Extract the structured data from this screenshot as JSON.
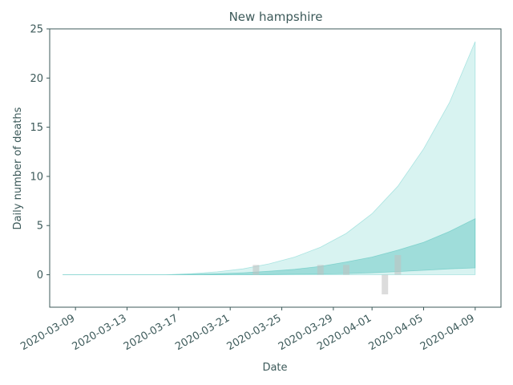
{
  "chart_data": {
    "type": "area",
    "title": "New hampshire",
    "xlabel": "Date",
    "ylabel": "Daily number of deaths",
    "xlim": [
      "2020-03-07",
      "2020-04-11"
    ],
    "ylim": [
      -3.3,
      25
    ],
    "grid": false,
    "x_ticks": [
      "2020-03-09",
      "2020-03-13",
      "2020-03-17",
      "2020-03-21",
      "2020-03-25",
      "2020-03-29",
      "2020-04-01",
      "2020-04-05",
      "2020-04-09"
    ],
    "y_ticks": [
      0,
      5,
      10,
      15,
      20,
      25
    ],
    "bands": [
      {
        "color": "#7fd6d2",
        "opacity": 0.3,
        "x": [
          "2020-03-08",
          "2020-03-12",
          "2020-03-16",
          "2020-03-18",
          "2020-03-20",
          "2020-03-22",
          "2020-03-24",
          "2020-03-26",
          "2020-03-28",
          "2020-03-30",
          "2020-04-01",
          "2020-04-03",
          "2020-04-05",
          "2020-04-07",
          "2020-04-09"
        ],
        "lower": [
          0,
          0,
          0,
          0,
          0,
          0,
          0,
          0,
          0,
          0,
          0,
          0,
          0,
          0,
          0
        ],
        "upper": [
          0,
          0,
          0,
          0.1,
          0.3,
          0.6,
          1.1,
          1.8,
          2.8,
          4.2,
          6.2,
          9.0,
          12.8,
          17.5,
          23.7
        ]
      },
      {
        "color": "#5cc4be",
        "opacity": 0.45,
        "x": [
          "2020-03-08",
          "2020-03-12",
          "2020-03-16",
          "2020-03-18",
          "2020-03-20",
          "2020-03-22",
          "2020-03-24",
          "2020-03-26",
          "2020-03-28",
          "2020-03-30",
          "2020-04-01",
          "2020-04-03",
          "2020-04-05",
          "2020-04-07",
          "2020-04-09"
        ],
        "lower": [
          0,
          0,
          0,
          0,
          0,
          0.01,
          0.02,
          0.05,
          0.08,
          0.12,
          0.2,
          0.32,
          0.45,
          0.6,
          0.7
        ],
        "upper": [
          0,
          0,
          0,
          0.05,
          0.1,
          0.2,
          0.35,
          0.55,
          0.85,
          1.3,
          1.8,
          2.5,
          3.3,
          4.4,
          5.7
        ]
      }
    ],
    "bars": {
      "color": "#c0c0c0",
      "x": [
        "2020-03-23",
        "2020-03-28",
        "2020-03-30",
        "2020-04-02",
        "2020-04-03"
      ],
      "values": [
        1,
        1,
        1,
        -2,
        2
      ]
    },
    "colors": {
      "axis": "#3d5a5a",
      "text": "#3d5a5a"
    }
  }
}
